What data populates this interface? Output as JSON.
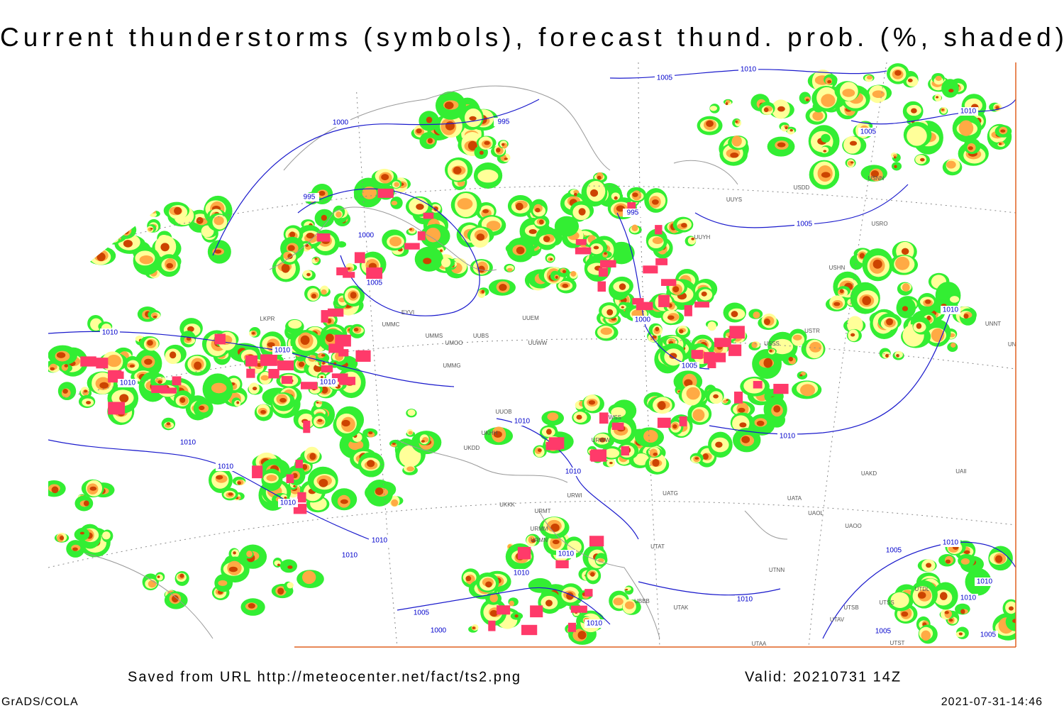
{
  "header": {
    "title": "Current thunderstorms (symbols), forecast thund. prob. (%, shaded)"
  },
  "footer": {
    "source": "Saved from URL http://meteocenter.net/fact/ts2.png",
    "valid": "Valid: 20210731 14Z",
    "software": "GrADS/COLA",
    "timestamp": "2021-07-31-14:46"
  },
  "isobar_labels": [
    "1005",
    "1010",
    "995",
    "1000",
    "995",
    "1000",
    "1005",
    "995",
    "1000",
    "1010",
    "1010",
    "1010",
    "1010",
    "1005",
    "1010",
    "1010",
    "1010",
    "1010",
    "1010",
    "1010",
    "1005",
    "1005",
    "1010",
    "1010",
    "1010",
    "1010",
    "1010",
    "1010",
    "1005",
    "1000",
    "1010",
    "1010",
    "1005",
    "1010",
    "1010",
    "1010",
    "1005",
    "1005"
  ],
  "station_labels": [
    "UUYS",
    "USDD",
    "USNN",
    "USRO",
    "USHN",
    "UUYH",
    "USSS",
    "USTR",
    "UNNT",
    "UNBB",
    "UMMG",
    "UMMS",
    "UMOO",
    "UUBS",
    "UUWW",
    "UUEM",
    "UMMC",
    "EYVI",
    "UKDD",
    "UKHH",
    "UUOB",
    "UWSS",
    "URWW",
    "URWI",
    "UATG",
    "UATA",
    "UAOL",
    "UAKD",
    "UAII",
    "URMT",
    "URMM",
    "URMN",
    "UTAT",
    "UTNN",
    "UTAA",
    "UBBB",
    "UTAK",
    "LKPR",
    "UKKK",
    "UAOO",
    "UTDL",
    "UTSB",
    "UTSS",
    "UTAV",
    "UTST"
  ]
}
